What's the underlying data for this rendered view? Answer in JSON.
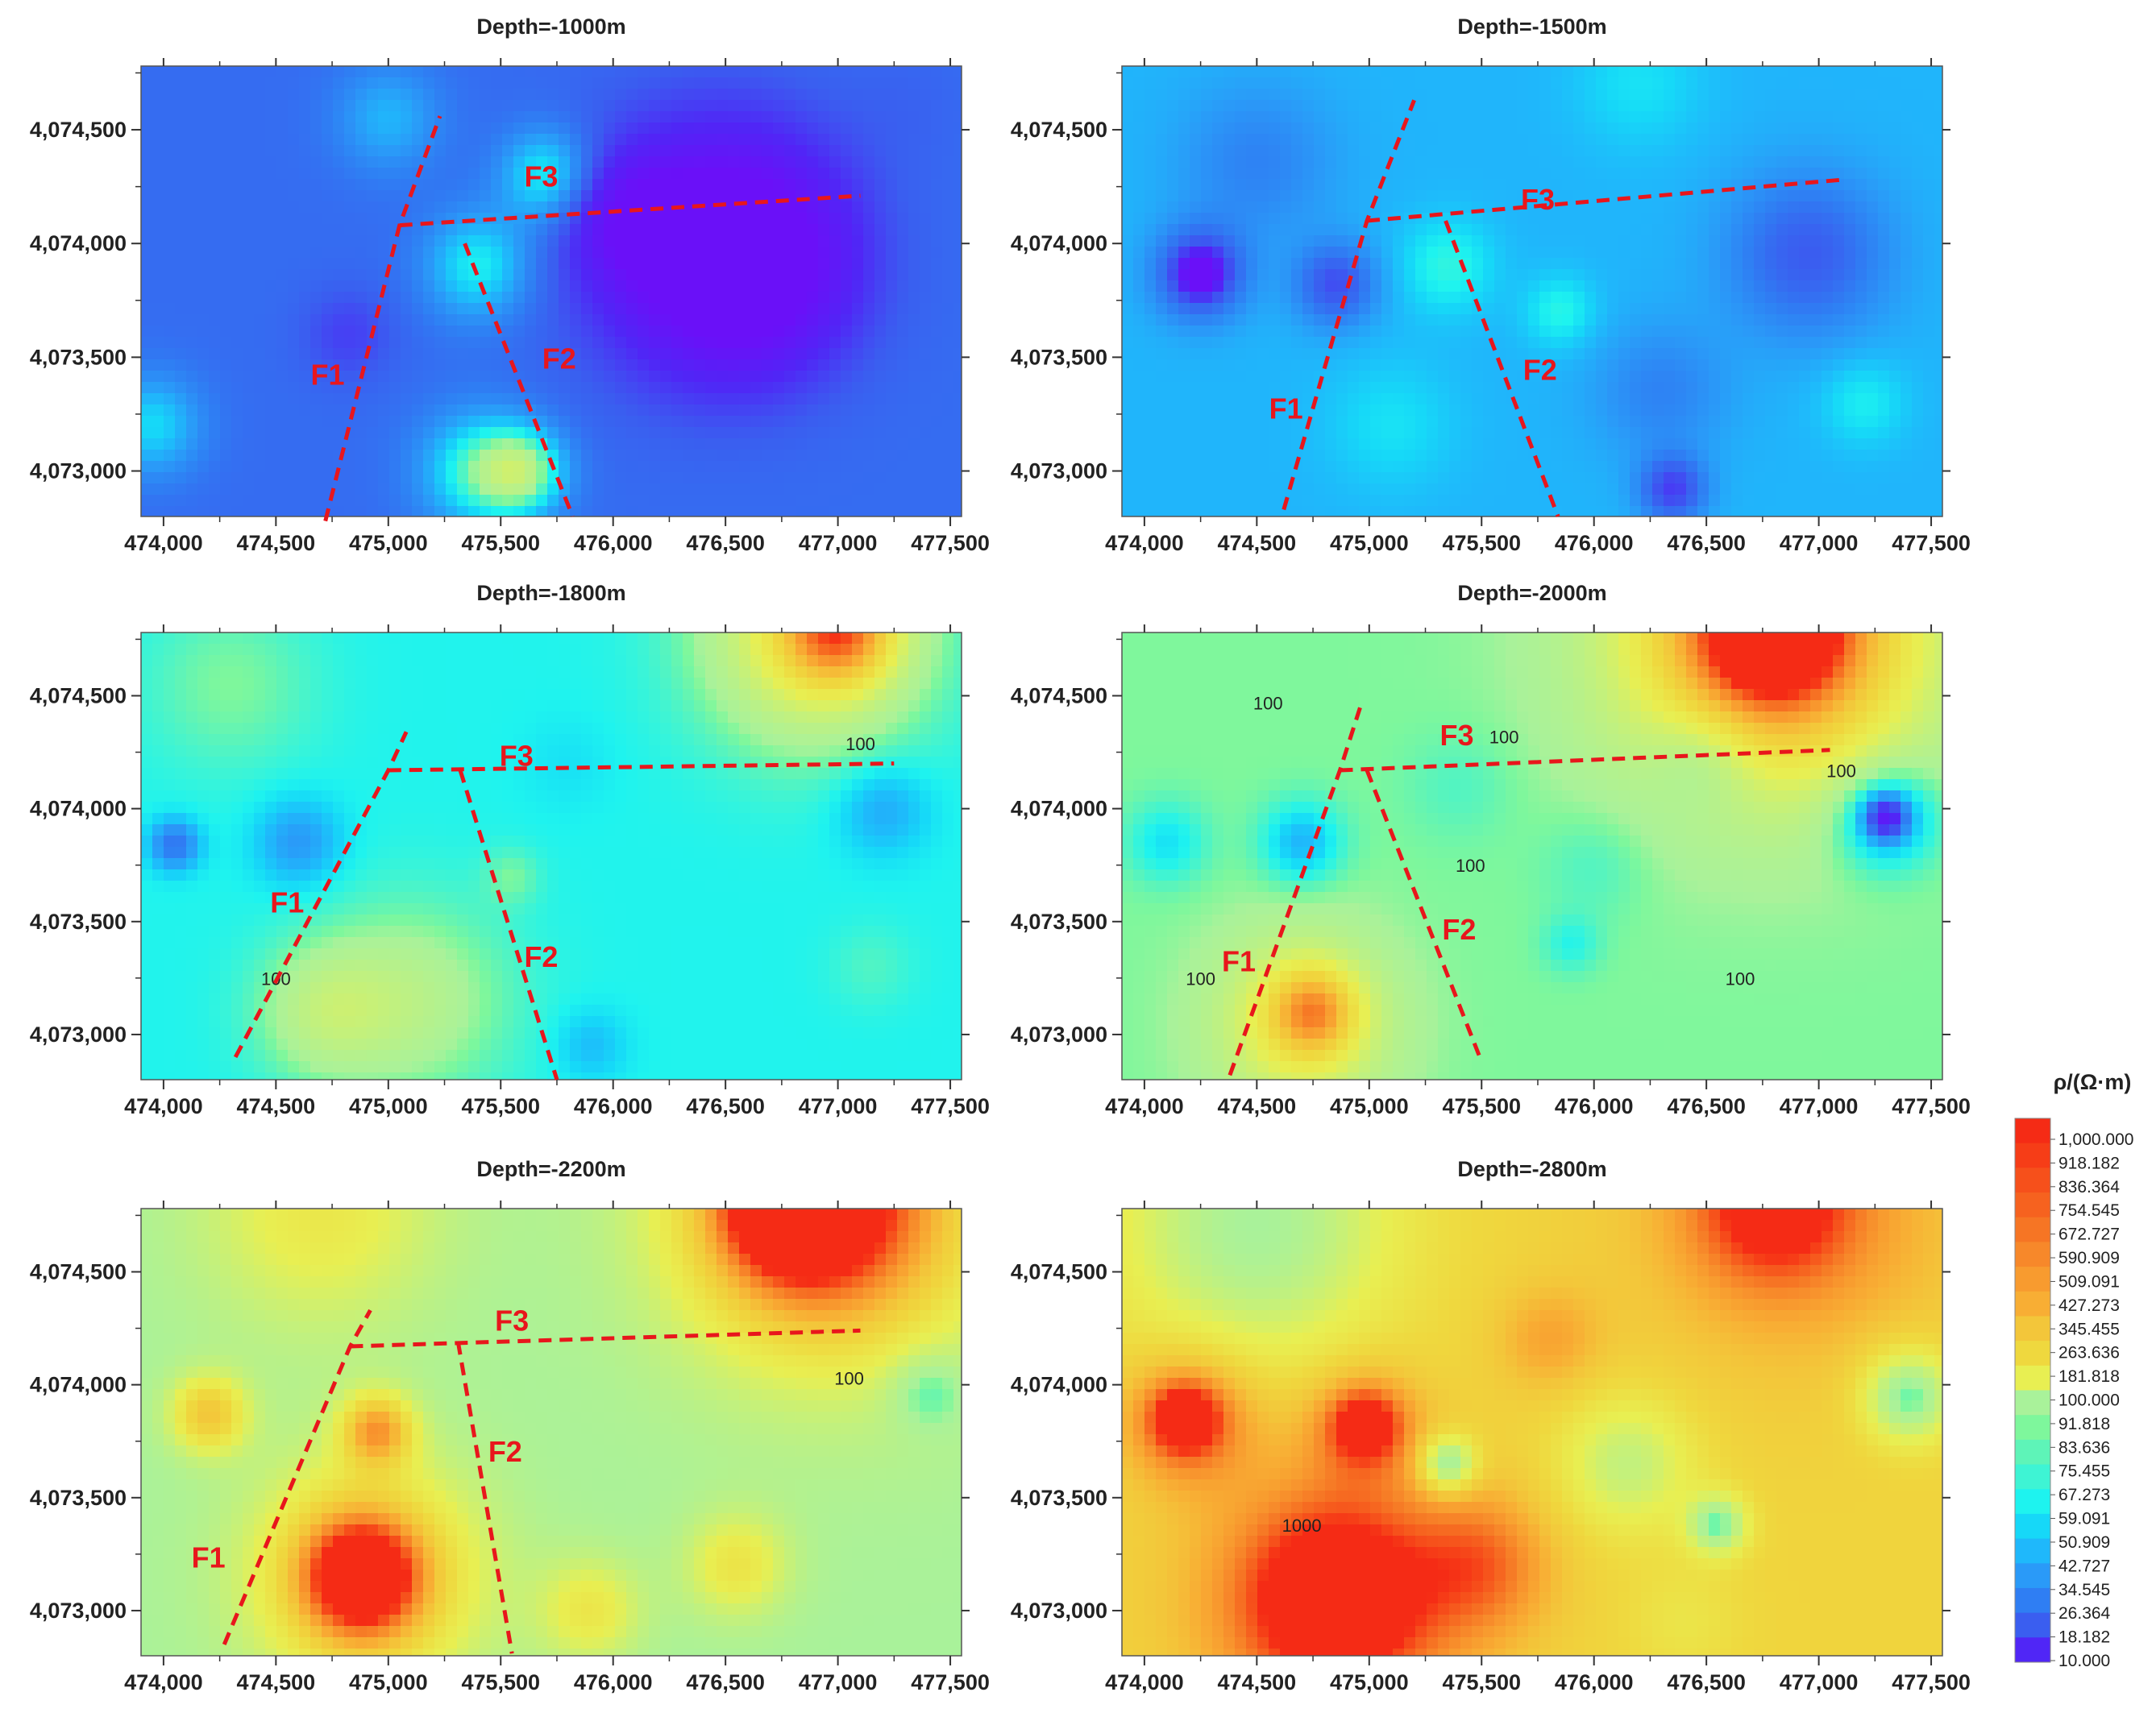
{
  "chart_data": [
    {
      "type": "heatmap",
      "title": "Depth=-1000m",
      "x_ticks": [
        "474,000",
        "474,500",
        "475,000",
        "475,500",
        "476,000",
        "476,500",
        "477,000",
        "477,500"
      ],
      "y_ticks": [
        "4,074,500",
        "4,074,000",
        "4,073,500",
        "4,073,000"
      ],
      "xlim": [
        473900,
        477550
      ],
      "ylim": [
        4072800,
        4074780
      ],
      "background": 30,
      "blobs": [
        {
          "x": 476450,
          "y": 4073980,
          "r": 700,
          "v": 10
        },
        {
          "x": 476600,
          "y": 4073900,
          "r": 520,
          "v": 12
        },
        {
          "x": 476100,
          "y": 4074100,
          "r": 320,
          "v": 16
        },
        {
          "x": 474820,
          "y": 4073600,
          "r": 260,
          "v": 22
        },
        {
          "x": 474650,
          "y": 4074150,
          "r": 240,
          "v": 30
        },
        {
          "x": 473950,
          "y": 4073200,
          "r": 280,
          "v": 60
        },
        {
          "x": 475400,
          "y": 4073900,
          "r": 300,
          "v": 68
        },
        {
          "x": 475600,
          "y": 4073000,
          "r": 240,
          "v": 85
        },
        {
          "x": 475400,
          "y": 4073000,
          "r": 330,
          "v": 75
        },
        {
          "x": 475700,
          "y": 4074300,
          "r": 260,
          "v": 72
        },
        {
          "x": 477300,
          "y": 4074600,
          "r": 320,
          "v": 28
        },
        {
          "x": 475000,
          "y": 4074550,
          "r": 300,
          "v": 50
        }
      ],
      "faults": [
        {
          "label": "F1",
          "points": [
            [
              474720,
              4072780
            ],
            [
              475050,
              4074080
            ],
            [
              475230,
              4074560
            ]
          ],
          "label_at": [
            474730,
            4073380
          ]
        },
        {
          "label": "F2",
          "points": [
            [
              475340,
              4074000
            ],
            [
              475820,
              4072800
            ]
          ],
          "label_at": [
            475760,
            4073450
          ]
        },
        {
          "label": "F3",
          "points": [
            [
              475050,
              4074080
            ],
            [
              477100,
              4074210
            ]
          ],
          "label_at": [
            475680,
            4074250
          ]
        }
      ],
      "contour_labels": []
    },
    {
      "type": "heatmap",
      "title": "Depth=-1500m",
      "x_ticks": [
        "474,000",
        "474,500",
        "475,000",
        "475,500",
        "476,000",
        "476,500",
        "477,000",
        "477,500"
      ],
      "y_ticks": [
        "4,074,500",
        "4,074,000",
        "4,073,500",
        "4,073,000"
      ],
      "xlim": [
        473900,
        477550
      ],
      "ylim": [
        4072800,
        4074780
      ],
      "background": 50,
      "blobs": [
        {
          "x": 474250,
          "y": 4073870,
          "r": 240,
          "v": 18
        },
        {
          "x": 474250,
          "y": 4073870,
          "r": 90,
          "v": 10
        },
        {
          "x": 474850,
          "y": 4073820,
          "r": 220,
          "v": 24
        },
        {
          "x": 474500,
          "y": 4074350,
          "r": 420,
          "v": 36
        },
        {
          "x": 476950,
          "y": 4073950,
          "r": 430,
          "v": 26
        },
        {
          "x": 476350,
          "y": 4072920,
          "r": 180,
          "v": 22
        },
        {
          "x": 476300,
          "y": 4073350,
          "r": 360,
          "v": 36
        },
        {
          "x": 475350,
          "y": 4073900,
          "r": 260,
          "v": 72
        },
        {
          "x": 475850,
          "y": 4073700,
          "r": 200,
          "v": 70
        },
        {
          "x": 475100,
          "y": 4073200,
          "r": 360,
          "v": 62
        },
        {
          "x": 477200,
          "y": 4073300,
          "r": 240,
          "v": 66
        },
        {
          "x": 476200,
          "y": 4074700,
          "r": 360,
          "v": 62
        }
      ],
      "faults": [
        {
          "label": "F1",
          "points": [
            [
              474620,
              4072830
            ],
            [
              474990,
              4074100
            ],
            [
              475200,
              4074630
            ]
          ],
          "label_at": [
            474630,
            4073230
          ]
        },
        {
          "label": "F2",
          "points": [
            [
              475340,
              4074100
            ],
            [
              475840,
              4072800
            ]
          ],
          "label_at": [
            475760,
            4073400
          ]
        },
        {
          "label": "F3",
          "points": [
            [
              474990,
              4074100
            ],
            [
              477100,
              4074280
            ]
          ],
          "label_at": [
            475750,
            4074150
          ]
        }
      ],
      "contour_labels": []
    },
    {
      "type": "heatmap",
      "title": "Depth=-1800m",
      "x_ticks": [
        "474,000",
        "474,500",
        "475,000",
        "475,500",
        "476,000",
        "476,500",
        "477,000",
        "477,500"
      ],
      "y_ticks": [
        "4,074,500",
        "4,074,000",
        "4,073,500",
        "4,073,000"
      ],
      "xlim": [
        473900,
        477550
      ],
      "ylim": [
        4072800,
        4074780
      ],
      "background": 68,
      "blobs": [
        {
          "x": 475100,
          "y": 4073150,
          "r": 560,
          "v": 115
        },
        {
          "x": 474700,
          "y": 4073100,
          "r": 380,
          "v": 110
        },
        {
          "x": 476900,
          "y": 4074780,
          "r": 620,
          "v": 220
        },
        {
          "x": 477000,
          "y": 4074800,
          "r": 280,
          "v": 330
        },
        {
          "x": 474050,
          "y": 4073840,
          "r": 140,
          "v": 32
        },
        {
          "x": 474600,
          "y": 4073850,
          "r": 240,
          "v": 42
        },
        {
          "x": 477200,
          "y": 4074000,
          "r": 260,
          "v": 46
        },
        {
          "x": 477150,
          "y": 4073300,
          "r": 240,
          "v": 80
        },
        {
          "x": 475900,
          "y": 4072950,
          "r": 200,
          "v": 52
        },
        {
          "x": 475800,
          "y": 4074200,
          "r": 260,
          "v": 62
        },
        {
          "x": 475550,
          "y": 4073700,
          "r": 160,
          "v": 88
        },
        {
          "x": 474300,
          "y": 4074550,
          "r": 480,
          "v": 92
        }
      ],
      "faults": [
        {
          "label": "F1",
          "points": [
            [
              474320,
              4072900
            ],
            [
              475000,
              4074170
            ],
            [
              475080,
              4074340
            ]
          ],
          "label_at": [
            474550,
            4073540
          ]
        },
        {
          "label": "F2",
          "points": [
            [
              475320,
              4074170
            ],
            [
              475750,
              4072800
            ]
          ],
          "label_at": [
            475680,
            4073300
          ]
        },
        {
          "label": "F3",
          "points": [
            [
              475000,
              4074170
            ],
            [
              477250,
              4074200
            ]
          ],
          "label_at": [
            475570,
            4074190
          ]
        }
      ],
      "contour_labels": [
        {
          "text": "100",
          "at": [
            477100,
            4074260
          ]
        },
        {
          "text": "100",
          "at": [
            474500,
            4073220
          ]
        }
      ]
    },
    {
      "type": "heatmap",
      "title": "Depth=-2000m",
      "x_ticks": [
        "474,000",
        "474,500",
        "475,000",
        "475,500",
        "476,000",
        "476,500",
        "477,000",
        "477,500"
      ],
      "y_ticks": [
        "4,074,500",
        "4,074,000",
        "4,073,500",
        "4,073,000"
      ],
      "xlim": [
        473900,
        477550
      ],
      "ylim": [
        4072800,
        4074780
      ],
      "background": 92,
      "blobs": [
        {
          "x": 474700,
          "y": 4073050,
          "r": 480,
          "v": 210
        },
        {
          "x": 474750,
          "y": 4073100,
          "r": 220,
          "v": 300
        },
        {
          "x": 476800,
          "y": 4074780,
          "r": 900,
          "v": 330
        },
        {
          "x": 476800,
          "y": 4074790,
          "r": 520,
          "v": 520
        },
        {
          "x": 476800,
          "y": 4074800,
          "r": 260,
          "v": 800
        },
        {
          "x": 477300,
          "y": 4073960,
          "r": 280,
          "v": 40
        },
        {
          "x": 477300,
          "y": 4073960,
          "r": 110,
          "v": 26
        },
        {
          "x": 474100,
          "y": 4073850,
          "r": 220,
          "v": 62
        },
        {
          "x": 474700,
          "y": 4073850,
          "r": 220,
          "v": 50
        },
        {
          "x": 476500,
          "y": 4074250,
          "r": 300,
          "v": 62
        },
        {
          "x": 475400,
          "y": 4074100,
          "r": 300,
          "v": 80
        },
        {
          "x": 476000,
          "y": 4073750,
          "r": 300,
          "v": 78
        },
        {
          "x": 475900,
          "y": 4073400,
          "r": 160,
          "v": 70
        }
      ],
      "faults": [
        {
          "label": "F1",
          "points": [
            [
              474380,
              4072820
            ],
            [
              474870,
              4074170
            ],
            [
              474970,
              4074480
            ]
          ],
          "label_at": [
            474420,
            4073280
          ]
        },
        {
          "label": "F2",
          "points": [
            [
              474990,
              4074170
            ],
            [
              475500,
              4072880
            ]
          ],
          "label_at": [
            475400,
            4073420
          ]
        },
        {
          "label": "F3",
          "points": [
            [
              474870,
              4074170
            ],
            [
              477050,
              4074260
            ]
          ],
          "label_at": [
            475390,
            4074280
          ]
        }
      ],
      "contour_labels": [
        {
          "text": "100",
          "at": [
            474550,
            4074440
          ]
        },
        {
          "text": "100",
          "at": [
            475600,
            4074290
          ]
        },
        {
          "text": "100",
          "at": [
            477100,
            4074140
          ]
        },
        {
          "text": "100",
          "at": [
            475450,
            4073720
          ]
        },
        {
          "text": "100",
          "at": [
            474250,
            4073220
          ]
        },
        {
          "text": "100",
          "at": [
            476650,
            4073220
          ]
        }
      ]
    },
    {
      "type": "heatmap",
      "title": "Depth=-2200m",
      "x_ticks": [
        "474,000",
        "474,500",
        "475,000",
        "475,500",
        "476,000",
        "476,500",
        "477,000",
        "477,500"
      ],
      "y_ticks": [
        "4,074,500",
        "4,074,000",
        "4,073,500",
        "4,073,000"
      ],
      "xlim": [
        473900,
        477550
      ],
      "ylim": [
        4072800,
        4074780
      ],
      "background": 100,
      "blobs": [
        {
          "x": 474900,
          "y": 4073150,
          "r": 640,
          "v": 420
        },
        {
          "x": 474880,
          "y": 4073150,
          "r": 300,
          "v": 800
        },
        {
          "x": 474880,
          "y": 4073150,
          "r": 120,
          "v": 1000
        },
        {
          "x": 474950,
          "y": 4073800,
          "r": 200,
          "v": 420
        },
        {
          "x": 474200,
          "y": 4073870,
          "r": 220,
          "v": 330
        },
        {
          "x": 477000,
          "y": 4074790,
          "r": 1000,
          "v": 330
        },
        {
          "x": 476900,
          "y": 4074800,
          "r": 600,
          "v": 620
        },
        {
          "x": 476800,
          "y": 4074800,
          "r": 300,
          "v": 960
        },
        {
          "x": 477400,
          "y": 4073980,
          "r": 220,
          "v": 62
        },
        {
          "x": 476550,
          "y": 4073200,
          "r": 300,
          "v": 220
        },
        {
          "x": 475900,
          "y": 4073000,
          "r": 300,
          "v": 210
        },
        {
          "x": 474700,
          "y": 4074780,
          "r": 700,
          "v": 210
        }
      ],
      "faults": [
        {
          "label": "F1",
          "points": [
            [
              474270,
              4072850
            ],
            [
              474830,
              4074170
            ],
            [
              474920,
              4074330
            ]
          ],
          "label_at": [
            474200,
            4073190
          ]
        },
        {
          "label": "F2",
          "points": [
            [
              475310,
              4074190
            ],
            [
              475550,
              4072810
            ]
          ],
          "label_at": [
            475520,
            4073660
          ]
        },
        {
          "label": "F3",
          "points": [
            [
              474830,
              4074170
            ],
            [
              477100,
              4074240
            ]
          ],
          "label_at": [
            475550,
            4074240
          ]
        }
      ],
      "contour_labels": [
        {
          "text": "100",
          "at": [
            477050,
            4074000
          ]
        }
      ]
    },
    {
      "type": "heatmap",
      "title": "Depth=-2800m",
      "x_ticks": [
        "474,000",
        "474,500",
        "475,000",
        "475,500",
        "476,000",
        "476,500",
        "477,000",
        "477,500"
      ],
      "y_ticks": [
        "4,074,500",
        "4,074,000",
        "4,073,500",
        "4,073,000"
      ],
      "xlim": [
        473900,
        477550
      ],
      "ylim": [
        4072800,
        4074780
      ],
      "background": 280,
      "blobs": [
        {
          "x": 474850,
          "y": 4073050,
          "r": 780,
          "v": 720
        },
        {
          "x": 474850,
          "y": 4073050,
          "r": 460,
          "v": 1000
        },
        {
          "x": 474980,
          "y": 4073820,
          "r": 300,
          "v": 760
        },
        {
          "x": 474980,
          "y": 4073820,
          "r": 140,
          "v": 1000
        },
        {
          "x": 474200,
          "y": 4073850,
          "r": 360,
          "v": 760
        },
        {
          "x": 474180,
          "y": 4073850,
          "r": 170,
          "v": 1000
        },
        {
          "x": 475500,
          "y": 4073200,
          "r": 380,
          "v": 620
        },
        {
          "x": 475800,
          "y": 4074200,
          "r": 300,
          "v": 460
        },
        {
          "x": 476900,
          "y": 4074790,
          "r": 900,
          "v": 520
        },
        {
          "x": 476800,
          "y": 4074800,
          "r": 420,
          "v": 900
        },
        {
          "x": 474500,
          "y": 4074700,
          "r": 760,
          "v": 100
        },
        {
          "x": 476150,
          "y": 4073650,
          "r": 380,
          "v": 130
        },
        {
          "x": 477400,
          "y": 4073950,
          "r": 260,
          "v": 80
        },
        {
          "x": 476550,
          "y": 4073380,
          "r": 170,
          "v": 90
        },
        {
          "x": 475350,
          "y": 4073650,
          "r": 160,
          "v": 75
        },
        {
          "x": 476400,
          "y": 4072950,
          "r": 330,
          "v": 220
        }
      ],
      "faults": [],
      "contour_labels": [
        {
          "text": "1000",
          "at": [
            474700,
            4073350
          ]
        }
      ]
    }
  ],
  "colorbar": {
    "title": "ρ/(Ω·m)",
    "levels": [
      "1,000.000",
      "918.182",
      "836.364",
      "754.545",
      "672.727",
      "590.909",
      "509.091",
      "427.273",
      "345.455",
      "263.636",
      "181.818",
      "100.000",
      "91.818",
      "83.636",
      "75.455",
      "67.273",
      "59.091",
      "50.909",
      "42.727",
      "34.545",
      "26.364",
      "18.182",
      "10.000"
    ],
    "colors": [
      "#f52b15",
      "#f63d17",
      "#f6501b",
      "#f6621f",
      "#f67524",
      "#f7882a",
      "#f89b2f",
      "#f8ae34",
      "#f3c63a",
      "#efd83e",
      "#e8ef52",
      "#a9f29a",
      "#7ef79c",
      "#5ef4b8",
      "#3ef4d4",
      "#1ef3ef",
      "#16d8f8",
      "#1fb8fb",
      "#2a9af8",
      "#2f7ef3",
      "#3a5ef0",
      "#5026f6",
      "#6a10f8"
    ]
  }
}
